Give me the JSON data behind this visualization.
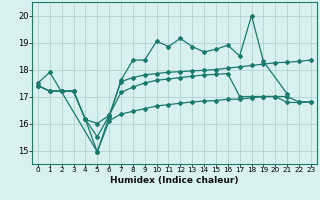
{
  "title": "",
  "xlabel": "Humidex (Indice chaleur)",
  "x_all": [
    0,
    1,
    2,
    3,
    4,
    5,
    6,
    7,
    8,
    9,
    10,
    11,
    12,
    13,
    14,
    15,
    16,
    17,
    18,
    19,
    20,
    21,
    22,
    23
  ],
  "line1_x": [
    0,
    1,
    5,
    6,
    7,
    8,
    9,
    10,
    11,
    12,
    13,
    14,
    15,
    16,
    17,
    18,
    19,
    21
  ],
  "line1_y": [
    17.5,
    17.9,
    14.95,
    16.25,
    17.6,
    18.35,
    18.35,
    19.05,
    18.85,
    19.15,
    18.85,
    18.65,
    18.75,
    18.9,
    18.5,
    20.0,
    18.3,
    17.1
  ],
  "line2_y": [
    17.4,
    17.2,
    17.2,
    17.2,
    16.15,
    16.0,
    16.3,
    17.55,
    17.7,
    17.8,
    17.85,
    17.9,
    17.92,
    17.95,
    17.97,
    18.0,
    18.05,
    18.1,
    18.15,
    18.2,
    18.25,
    18.27,
    18.3,
    18.35
  ],
  "line3_y": [
    17.4,
    17.2,
    17.2,
    17.2,
    16.15,
    15.5,
    16.3,
    17.15,
    17.35,
    17.5,
    17.6,
    17.65,
    17.7,
    17.75,
    17.8,
    17.82,
    17.85,
    17.0,
    17.0,
    17.0,
    17.0,
    17.0,
    16.8,
    16.8
  ],
  "line4_y": [
    17.4,
    17.2,
    17.2,
    17.2,
    16.15,
    14.95,
    16.1,
    16.35,
    16.45,
    16.55,
    16.65,
    16.7,
    16.75,
    16.8,
    16.83,
    16.85,
    16.9,
    16.9,
    16.95,
    17.0,
    17.0,
    16.78,
    16.78,
    16.8
  ],
  "color": "#1a7a6e",
  "bg_color": "#d8f0f0",
  "grid_color": "#a8cece",
  "ylim": [
    14.5,
    20.5
  ],
  "yticks": [
    15,
    16,
    17,
    18,
    19,
    20
  ],
  "xlim": [
    -0.5,
    23.5
  ]
}
